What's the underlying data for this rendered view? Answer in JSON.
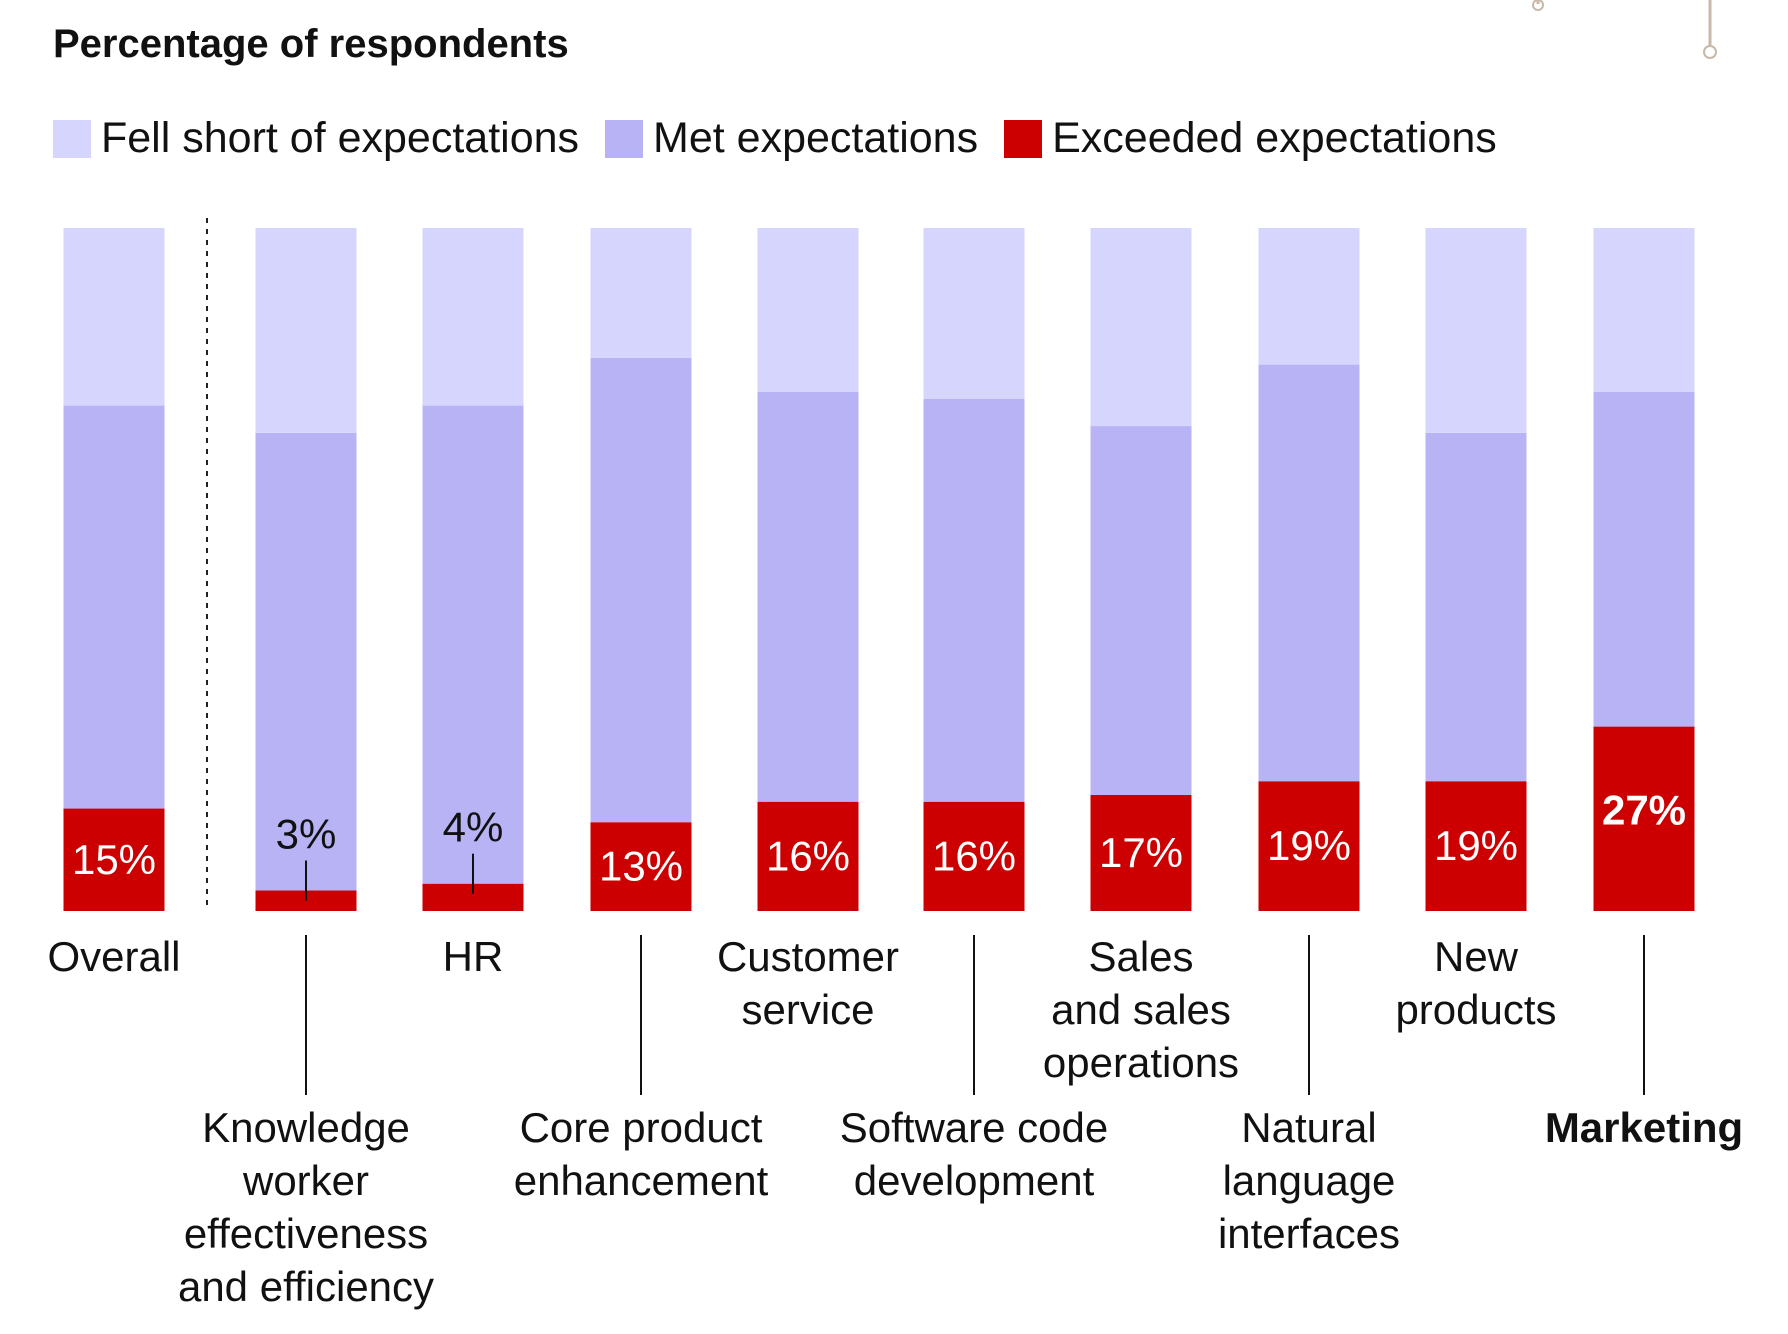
{
  "chart_data": {
    "type": "bar",
    "stacked": true,
    "title": "Percentage of respondents",
    "legend": {
      "position": "top-left"
    },
    "ylim": [
      0,
      100
    ],
    "grid": false,
    "categories": [
      "Overall",
      "Knowledge worker effectiveness and efficiency",
      "HR",
      "Core product enhancement",
      "Customer service",
      "Software code development",
      "Sales and sales operations",
      "Natural language interfaces",
      "New products",
      "Marketing"
    ],
    "category_labels": [
      [
        "Overall"
      ],
      [
        "Knowledge",
        "worker",
        "effectiveness",
        "and efficiency"
      ],
      [
        "HR"
      ],
      [
        "Core product",
        "enhancement"
      ],
      [
        "Customer",
        "service"
      ],
      [
        "Software code",
        "development"
      ],
      [
        "Sales",
        "and sales",
        "operations"
      ],
      [
        "Natural",
        "language",
        "interfaces"
      ],
      [
        "New",
        "products"
      ],
      [
        "Marketing"
      ]
    ],
    "highlight_category": "Marketing",
    "series": [
      {
        "name": "Exceeded expectations",
        "color": "#CC0000",
        "values": [
          15,
          3,
          4,
          13,
          16,
          16,
          17,
          19,
          19,
          27
        ],
        "labels": [
          "15%",
          "3%",
          "4%",
          "13%",
          "16%",
          "16%",
          "17%",
          "19%",
          "19%",
          "27%"
        ]
      },
      {
        "name": "Met expectations",
        "color": "#B8B3F5",
        "values": [
          59,
          67,
          70,
          68,
          60,
          59,
          54,
          61,
          51,
          49
        ]
      },
      {
        "name": "Fell short of expectations",
        "color": "#D6D5FD",
        "values": [
          26,
          30,
          26,
          19,
          24,
          25,
          29,
          20,
          30,
          24
        ]
      }
    ]
  }
}
